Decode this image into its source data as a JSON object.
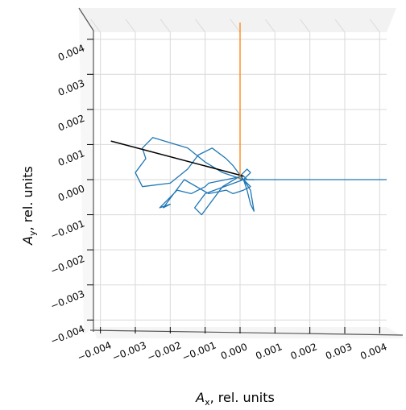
{
  "chart_data": {
    "type": "line",
    "projection": "3d",
    "title": "",
    "xlabel": {
      "symbol": "A",
      "subscript": "x",
      "unit": ", rel. units"
    },
    "ylabel": {
      "symbol": "A",
      "subscript": "y",
      "unit": ", rel. units"
    },
    "xlim": [
      -0.0042,
      0.0042
    ],
    "ylim": [
      -0.0042,
      0.0042
    ],
    "xticks": [
      -0.004,
      -0.003,
      -0.002,
      -0.001,
      0.0,
      0.001,
      0.002,
      0.003,
      0.004
    ],
    "xtick_labels": [
      "−0.004",
      "−0.003",
      "−0.002",
      "−0.001",
      "0.000",
      "0.001",
      "0.002",
      "0.003",
      "0.004"
    ],
    "yticks": [
      -0.004,
      -0.003,
      -0.002,
      -0.001,
      0.0,
      0.001,
      0.002,
      0.003,
      0.004
    ],
    "ytick_labels": [
      "−0.004",
      "−0.003",
      "−0.002",
      "−0.001",
      "0.000",
      "0.001",
      "0.002",
      "0.003",
      "0.004"
    ],
    "grid": true,
    "colors": {
      "trajectory": "#1f77b4",
      "resultant": "#000000",
      "vertical_axis": "#ff7f0e",
      "grid": "#d9d9d9",
      "pane": "#f2f2f2",
      "frame": "#555555"
    },
    "series": [
      {
        "role": "trajectory",
        "x": [
          0.0,
          0.0001,
          0.0002,
          0.0003,
          0.0002,
          0.0001,
          -0.0005,
          -0.001,
          -0.0015,
          -0.0025,
          -0.0028,
          -0.0027,
          -0.003,
          -0.0028,
          -0.002,
          -0.0015,
          -0.0012,
          -0.0008,
          -0.0004,
          -0.0002,
          0.0001,
          0.0003,
          0.0004,
          0.0003,
          0.0002,
          0.0001,
          -0.001,
          -0.0013,
          -0.0011,
          -0.0005,
          0.0,
          0.0003,
          0.0001,
          -0.0002,
          -0.0004,
          -0.0009,
          -0.0016,
          -0.0022,
          -0.002,
          -0.0023,
          -0.0018,
          -0.0014,
          -0.001,
          -0.0009,
          -0.0004,
          0.0001,
          0.0002,
          0.0001,
          0.0004
        ],
        "y": [
          0.0001,
          0.0002,
          0.0003,
          0.0002,
          0.0001,
          0.0,
          0.0002,
          0.0005,
          0.0009,
          0.0012,
          0.0009,
          0.0006,
          0.0002,
          -0.0002,
          -0.0001,
          0.0003,
          0.0007,
          0.0009,
          0.0006,
          0.0004,
          0.0,
          -0.0003,
          -0.0009,
          -0.0007,
          -0.0003,
          0.0,
          -0.0004,
          -0.0008,
          -0.001,
          -0.0002,
          0.0001,
          -0.0002,
          -0.0003,
          -0.0004,
          -0.0003,
          -0.0004,
          0.0,
          -0.0008,
          -0.0007,
          -0.0008,
          -0.0003,
          -0.0004,
          -0.0002,
          -0.0001,
          0.0,
          0.0001,
          0.0,
          0.0,
          0.0
        ]
      },
      {
        "role": "reference",
        "x": [
          0.0,
          0.0042
        ],
        "y": [
          0.0,
          0.0
        ]
      },
      {
        "role": "resultant",
        "x": [
          0.0001,
          -0.0037
        ],
        "y": [
          0.0001,
          0.0011
        ]
      }
    ],
    "vertical_line": {
      "x": 0.0,
      "y": 0.0
    }
  }
}
